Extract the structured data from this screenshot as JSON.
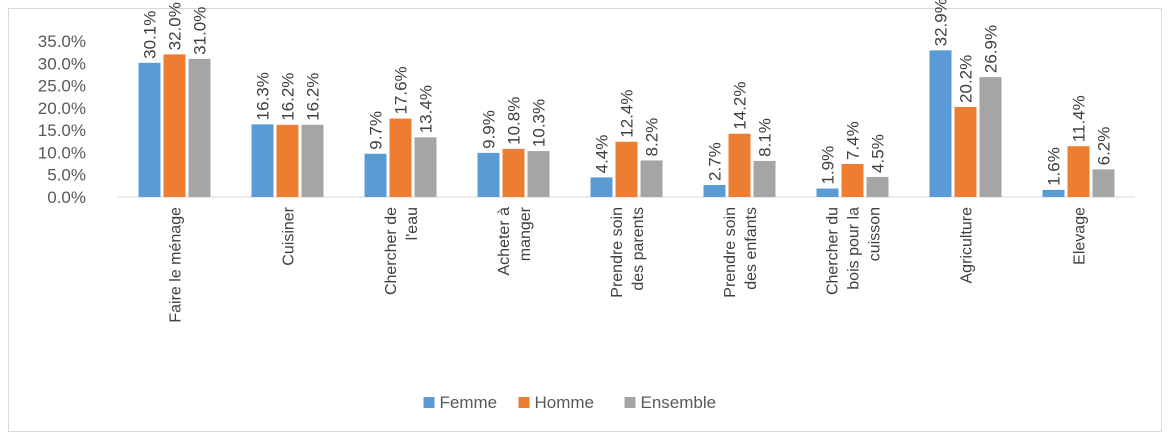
{
  "chart_data": {
    "type": "bar",
    "categories": [
      [
        "Faire le ménage"
      ],
      [
        "Cuisiner"
      ],
      [
        "Chercher de",
        "l'eau"
      ],
      [
        "Acheter à",
        "manger"
      ],
      [
        "Prendre soin",
        "des parents"
      ],
      [
        "Prendre soin",
        "des enfants"
      ],
      [
        "Chercher du",
        "bois pour la",
        "cuisson"
      ],
      [
        "Agriculture"
      ],
      [
        "Elevage"
      ]
    ],
    "series": [
      {
        "name": "Femme",
        "color": "#5b9bd5",
        "values": [
          30.1,
          16.3,
          9.7,
          9.9,
          4.4,
          2.7,
          1.9,
          32.9,
          1.6
        ],
        "labels": [
          "30.1%",
          "16.3%",
          "9.7%",
          "9.9%",
          "4.4%",
          "2.7%",
          "1.9%",
          "32.9%",
          "1.6%"
        ]
      },
      {
        "name": "Homme",
        "color": "#ed7d31",
        "values": [
          32.0,
          16.2,
          17.6,
          10.8,
          12.4,
          14.2,
          7.4,
          20.2,
          11.4
        ],
        "labels": [
          "32.0%",
          "16.2%",
          "17.6%",
          "10.8%",
          "12.4%",
          "14.2%",
          "7.4%",
          "20.2%",
          "11.4%"
        ]
      },
      {
        "name": "Ensemble",
        "color": "#a5a5a5",
        "values": [
          31.0,
          16.2,
          13.4,
          10.3,
          8.2,
          8.1,
          4.5,
          26.9,
          6.2
        ],
        "labels": [
          "31.0%",
          "16.2%",
          "13.4%",
          "10.3%",
          "8.2%",
          "8.1%",
          "4.5%",
          "26.9%",
          "6.2%"
        ]
      }
    ],
    "y_ticks": [
      "0.0%",
      "5.0%",
      "10.0%",
      "15.0%",
      "20.0%",
      "25.0%",
      "30.0%",
      "35.0%"
    ],
    "ylim": [
      0,
      35
    ],
    "grid": false,
    "legend_position": "bottom"
  }
}
